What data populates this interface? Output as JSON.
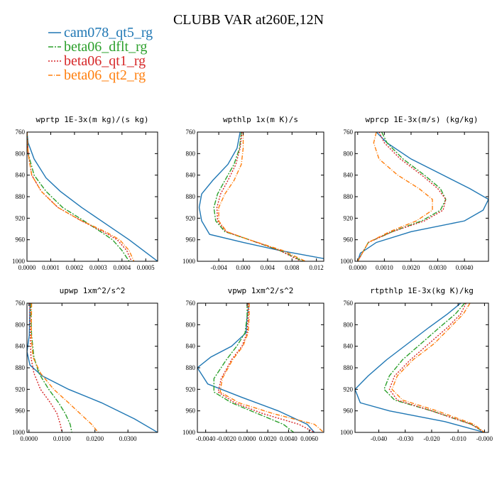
{
  "figure_title": "CLUBB VAR at260E,12N",
  "legend": [
    {
      "name": "cam078_qt5_rg",
      "color": "#1f77b4",
      "dash": ""
    },
    {
      "name": "beta06_dflt_rg",
      "color": "#2ca02c",
      "dash": "7,2,2,2"
    },
    {
      "name": "beta06_qt1_rg",
      "color": "#d62728",
      "dash": "2,2"
    },
    {
      "name": "beta06_qt2_rg",
      "color": "#ff7f0e",
      "dash": "6,2,1,2"
    }
  ],
  "chart_data": [
    {
      "type": "line",
      "title": "wprtp  1E-3x(m kg)/(s kg)",
      "xlim": [
        0.0,
        0.00055
      ],
      "ylim": [
        760,
        1000
      ],
      "y_reversed": true,
      "xticks": [
        0.0,
        0.0001,
        0.0002,
        0.0003,
        0.0004,
        0.0005
      ],
      "xtick_labels": [
        "0.0000",
        "0.0001",
        "0.0002",
        "0.0003",
        "0.0004",
        "0.0005"
      ],
      "yticks": [
        760,
        800,
        840,
        880,
        920,
        960,
        1000
      ],
      "series": [
        {
          "name": "cam078_qt5_rg",
          "x": [
            0.0,
            5e-06,
            3e-05,
            8e-05,
            0.00014,
            0.00023,
            0.00033,
            0.00043,
            0.00055
          ],
          "y": [
            760,
            780,
            810,
            845,
            870,
            900,
            930,
            960,
            1000
          ]
        },
        {
          "name": "beta06_dflt_rg",
          "x": [
            0.0,
            5e-06,
            3e-05,
            8e-05,
            0.00015,
            0.00024,
            0.00031,
            0.00036,
            0.0004,
            0.00043
          ],
          "y": [
            760,
            800,
            840,
            870,
            900,
            925,
            945,
            960,
            980,
            1000
          ]
        },
        {
          "name": "beta06_qt1_rg",
          "x": [
            0.0,
            5e-06,
            2e-05,
            6e-05,
            0.00013,
            0.00023,
            0.00032,
            0.00038,
            0.00042,
            0.00044
          ],
          "y": [
            760,
            800,
            840,
            870,
            900,
            925,
            945,
            960,
            980,
            1000
          ]
        },
        {
          "name": "beta06_qt2_rg",
          "x": [
            0.0,
            5e-06,
            2e-05,
            6e-05,
            0.00013,
            0.00023,
            0.00033,
            0.00039,
            0.00043,
            0.00045
          ],
          "y": [
            760,
            800,
            840,
            870,
            900,
            925,
            945,
            960,
            980,
            1000
          ]
        }
      ]
    },
    {
      "type": "line",
      "title": "wpthlp  1x(m K)/s",
      "xlim": [
        -0.0075,
        0.0132
      ],
      "ylim": [
        760,
        1000
      ],
      "y_reversed": true,
      "xticks": [
        -0.004,
        0.0,
        0.004,
        0.008,
        0.012
      ],
      "xtick_labels": [
        "-0.004",
        "0.000",
        "0.004",
        "0.008",
        "0.012"
      ],
      "yticks": [
        760,
        800,
        840,
        880,
        920,
        960,
        1000
      ],
      "series": [
        {
          "name": "cam078_qt5_rg",
          "x": [
            -0.0005,
            -0.001,
            -0.0025,
            -0.005,
            -0.0068,
            -0.0072,
            -0.0068,
            -0.0055,
            0.0,
            0.006,
            0.0132
          ],
          "y": [
            760,
            790,
            820,
            850,
            875,
            900,
            925,
            950,
            965,
            980,
            995
          ]
        },
        {
          "name": "beta06_dflt_rg",
          "x": [
            -0.0003,
            -0.0006,
            -0.0015,
            -0.003,
            -0.0042,
            -0.0048,
            -0.0045,
            -0.003,
            0.001,
            0.006,
            0.0098
          ],
          "y": [
            760,
            790,
            820,
            850,
            875,
            900,
            925,
            945,
            960,
            980,
            1000
          ]
        },
        {
          "name": "beta06_qt1_rg",
          "x": [
            -0.0002,
            -0.0005,
            -0.0012,
            -0.0025,
            -0.0037,
            -0.0043,
            -0.0042,
            -0.0028,
            0.001,
            0.006,
            0.0095
          ],
          "y": [
            760,
            790,
            820,
            850,
            875,
            900,
            925,
            945,
            960,
            980,
            1000
          ]
        },
        {
          "name": "beta06_qt2_rg",
          "x": [
            0.0,
            0.0,
            -0.0003,
            -0.0015,
            -0.003,
            -0.004,
            -0.004,
            -0.0027,
            0.001,
            0.0065,
            0.0102
          ],
          "y": [
            760,
            790,
            820,
            850,
            875,
            900,
            925,
            945,
            960,
            980,
            1000
          ]
        }
      ]
    },
    {
      "type": "line",
      "title": "wprcp  1E-3x(m/s) (kg/kg)",
      "xlim": [
        -0.0001,
        0.0049
      ],
      "ylim": [
        760,
        1000
      ],
      "y_reversed": true,
      "xticks": [
        0.0,
        0.001,
        0.002,
        0.003,
        0.004
      ],
      "xtick_labels": [
        "0.0000",
        "0.0010",
        "0.0020",
        "0.0030",
        "0.0040"
      ],
      "yticks": [
        760,
        800,
        840,
        880,
        920,
        960,
        1000
      ],
      "series": [
        {
          "name": "cam078_qt5_rg",
          "x": [
            0.0007,
            0.0011,
            0.002,
            0.0032,
            0.0042,
            0.0049,
            0.0047,
            0.004,
            0.002,
            0.0007,
            0.0001,
            0.0
          ],
          "y": [
            760,
            780,
            810,
            840,
            865,
            885,
            905,
            925,
            945,
            965,
            985,
            1000
          ]
        },
        {
          "name": "beta06_dflt_rg",
          "x": [
            0.0009,
            0.0011,
            0.0017,
            0.0025,
            0.0031,
            0.0033,
            0.0031,
            0.0024,
            0.0013,
            0.0004,
            0.0
          ],
          "y": [
            760,
            780,
            810,
            840,
            865,
            885,
            905,
            925,
            945,
            965,
            1000
          ]
        },
        {
          "name": "beta06_qt1_rg",
          "x": [
            0.0008,
            0.001,
            0.0016,
            0.0024,
            0.003,
            0.0033,
            0.0032,
            0.0025,
            0.0013,
            0.0004,
            0.0
          ],
          "y": [
            760,
            780,
            810,
            840,
            865,
            885,
            905,
            925,
            945,
            965,
            1000
          ]
        },
        {
          "name": "beta06_qt2_rg",
          "x": [
            0.0007,
            0.0006,
            0.0008,
            0.0015,
            0.0023,
            0.0028,
            0.0028,
            0.0022,
            0.0012,
            0.0004,
            0.0
          ],
          "y": [
            760,
            780,
            810,
            840,
            865,
            885,
            905,
            925,
            945,
            965,
            1000
          ]
        }
      ]
    },
    {
      "type": "line",
      "title": "upwp  1xm^2/s^2",
      "xlim": [
        -0.0006,
        0.039
      ],
      "ylim": [
        760,
        1000
      ],
      "y_reversed": true,
      "xticks": [
        0.0,
        0.01,
        0.02,
        0.03
      ],
      "xtick_labels": [
        "0.0000",
        "0.0100",
        "0.0200",
        "0.0300"
      ],
      "yticks": [
        760,
        800,
        840,
        880,
        920,
        960,
        1000
      ],
      "series": [
        {
          "name": "cam078_qt5_rg",
          "x": [
            0.0003,
            0.0001,
            -0.0006,
            0.0003,
            0.004,
            0.012,
            0.022,
            0.032,
            0.039
          ],
          "y": [
            760,
            820,
            850,
            875,
            895,
            920,
            945,
            975,
            1000
          ]
        },
        {
          "name": "beta06_dflt_rg",
          "x": [
            0.0005,
            0.0008,
            0.0015,
            0.003,
            0.006,
            0.009,
            0.011,
            0.0125,
            0.013
          ],
          "y": [
            760,
            820,
            860,
            890,
            920,
            945,
            965,
            985,
            1000
          ]
        },
        {
          "name": "beta06_qt1_rg",
          "x": [
            0.0003,
            0.0004,
            0.0006,
            0.0015,
            0.0035,
            0.0065,
            0.0085,
            0.0095,
            0.01
          ],
          "y": [
            760,
            820,
            860,
            890,
            920,
            945,
            965,
            985,
            1000
          ]
        },
        {
          "name": "beta06_qt2_rg",
          "x": [
            0.0008,
            0.0007,
            0.0012,
            0.0035,
            0.0075,
            0.012,
            0.0155,
            0.019,
            0.021
          ],
          "y": [
            760,
            820,
            860,
            890,
            920,
            945,
            965,
            985,
            1000
          ]
        }
      ]
    },
    {
      "type": "line",
      "title": "vpwp  1xm^2/s^2",
      "xlim": [
        -0.0048,
        0.0074
      ],
      "ylim": [
        760,
        1000
      ],
      "y_reversed": true,
      "xticks": [
        -0.004,
        -0.002,
        0.0,
        0.002,
        0.004,
        0.006
      ],
      "xtick_labels": [
        "-0.0040",
        "-0.0020",
        "0.0000",
        "0.0020",
        "0.0040",
        "0.0060"
      ],
      "yticks": [
        760,
        800,
        840,
        880,
        920,
        960,
        1000
      ],
      "series": [
        {
          "name": "cam078_qt5_rg",
          "x": [
            0.0002,
            0.0,
            -0.0001,
            -0.0015,
            -0.0035,
            -0.0048,
            -0.0038,
            -0.0005,
            0.003,
            0.0058,
            0.0065
          ],
          "y": [
            760,
            785,
            815,
            840,
            860,
            880,
            910,
            935,
            960,
            985,
            1000
          ]
        },
        {
          "name": "beta06_dflt_rg",
          "x": [
            0.0,
            0.0,
            -0.0002,
            -0.001,
            -0.002,
            -0.0032,
            -0.0032,
            -0.0015,
            0.001,
            0.0035,
            0.0045
          ],
          "y": [
            760,
            785,
            815,
            840,
            865,
            900,
            925,
            945,
            965,
            985,
            1000
          ]
        },
        {
          "name": "beta06_qt1_rg",
          "x": [
            0.0001,
            0.0001,
            0.0,
            -0.0005,
            -0.0015,
            -0.0025,
            -0.0028,
            -0.0012,
            0.0015,
            0.005,
            0.0065
          ],
          "y": [
            760,
            785,
            815,
            840,
            865,
            900,
            925,
            945,
            965,
            985,
            1000
          ]
        },
        {
          "name": "beta06_qt2_rg",
          "x": [
            0.0002,
            0.0002,
            0.0001,
            -0.0004,
            -0.0014,
            -0.0024,
            -0.0026,
            -0.0008,
            0.0025,
            0.0065,
            0.0074
          ],
          "y": [
            760,
            785,
            815,
            840,
            865,
            900,
            925,
            945,
            965,
            985,
            1000
          ]
        }
      ]
    },
    {
      "type": "line",
      "title": "rtpthlp  1E-3x(kg K)/kg",
      "xlim": [
        -0.049,
        0.0015
      ],
      "ylim": [
        760,
        1000
      ],
      "y_reversed": true,
      "xticks": [
        -0.04,
        -0.03,
        -0.02,
        -0.01,
        0.0
      ],
      "xtick_labels": [
        "-0.040",
        "-0.030",
        "-0.020",
        "-0.010",
        "-0.000"
      ],
      "yticks": [
        760,
        800,
        840,
        880,
        920,
        960,
        1000
      ],
      "series": [
        {
          "name": "cam078_qt5_rg",
          "x": [
            -0.009,
            -0.014,
            -0.021,
            -0.029,
            -0.037,
            -0.044,
            -0.049,
            -0.047,
            -0.036,
            -0.015,
            0.0
          ],
          "y": [
            760,
            780,
            805,
            835,
            865,
            895,
            920,
            945,
            960,
            980,
            1000
          ]
        },
        {
          "name": "beta06_dflt_rg",
          "x": [
            -0.0075,
            -0.011,
            -0.017,
            -0.024,
            -0.031,
            -0.036,
            -0.038,
            -0.034,
            -0.02,
            -0.005,
            0.0
          ],
          "y": [
            760,
            780,
            805,
            835,
            865,
            895,
            920,
            940,
            960,
            985,
            1000
          ]
        },
        {
          "name": "beta06_qt1_rg",
          "x": [
            -0.007,
            -0.009,
            -0.014,
            -0.021,
            -0.028,
            -0.034,
            -0.036,
            -0.033,
            -0.02,
            -0.005,
            0.0
          ],
          "y": [
            760,
            780,
            805,
            835,
            865,
            895,
            920,
            940,
            960,
            985,
            1000
          ]
        },
        {
          "name": "beta06_qt2_rg",
          "x": [
            -0.0055,
            -0.008,
            -0.013,
            -0.019,
            -0.027,
            -0.033,
            -0.035,
            -0.031,
            -0.018,
            -0.004,
            0.0
          ],
          "y": [
            760,
            780,
            805,
            835,
            865,
            895,
            920,
            940,
            960,
            985,
            1000
          ]
        }
      ]
    }
  ]
}
